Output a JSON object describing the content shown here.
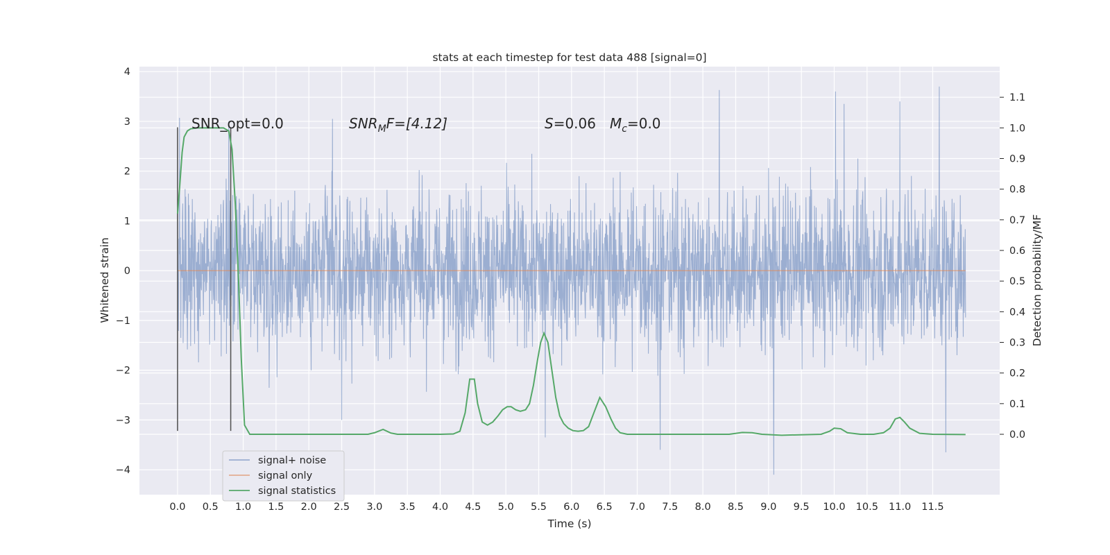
{
  "chart_data": {
    "type": "line",
    "title": "stats at each timestep for test data 488 [signal=0]",
    "xlabel": "Time (s)",
    "ylabel_left": "Whitened strain",
    "ylabel_right": "Detection probability/MF",
    "xlim": [
      -0.58,
      12.52
    ],
    "ylim_left": [
      -4.5,
      4.1
    ],
    "ylim_right": [
      -0.197,
      1.2
    ],
    "x_ticks": [
      "0.0",
      "0.5",
      "1.0",
      "1.5",
      "2.0",
      "2.5",
      "3.0",
      "3.5",
      "4.0",
      "4.5",
      "5.0",
      "5.5",
      "6.0",
      "6.5",
      "7.0",
      "7.5",
      "8.0",
      "8.5",
      "9.0",
      "9.5",
      "10.0",
      "10.5",
      "11.0",
      "11.5"
    ],
    "y_ticks_left": [
      "4",
      "3",
      "2",
      "1",
      "0",
      "−1",
      "−2",
      "−3",
      "−4"
    ],
    "y_ticks_right": [
      "1.1",
      "1.0",
      "0.9",
      "0.8",
      "0.7",
      "0.6",
      "0.5",
      "0.4",
      "0.3",
      "0.2",
      "0.1",
      "0.0"
    ],
    "grid": true,
    "legend_position": "lower-left",
    "annotations": {
      "snr_opt": "SNR_opt=0.0",
      "snr_mf_prefix": "SNR",
      "snr_mf_sub": "M",
      "snr_mf_rest": "F=[4.12]",
      "s_prefix": "S",
      "s_rest": "=0.06",
      "mc_prefix": "M",
      "mc_sub": "c",
      "mc_rest": "=0.0"
    },
    "vertical_markers_x": [
      0.0,
      0.81
    ],
    "series": [
      {
        "name": "signal+ noise",
        "color": "#4c72b0",
        "style": "noise, sampled from 0.0 to 12.0 s, amplitude roughly ±3.6 whitened strain",
        "envelope_peaks": [
          {
            "x": 0.03,
            "y": 3.07
          },
          {
            "x": 0.78,
            "y": 3.0
          },
          {
            "x": 2.36,
            "y": 3.05
          },
          {
            "x": 2.5,
            "y": -3.0
          },
          {
            "x": 8.25,
            "y": 3.63
          },
          {
            "x": 9.08,
            "y": -4.1
          },
          {
            "x": 10.02,
            "y": 3.6
          },
          {
            "x": 10.15,
            "y": 3.35
          },
          {
            "x": 11.0,
            "y": 3.4
          },
          {
            "x": 11.6,
            "y": 3.7
          },
          {
            "x": 11.7,
            "y": -3.65
          },
          {
            "x": 7.35,
            "y": -3.6
          },
          {
            "x": 5.6,
            "y": -3.35
          }
        ]
      },
      {
        "name": "signal only",
        "color": "#dd8452",
        "x": [
          0.0,
          12.0
        ],
        "y": [
          0.0,
          0.0
        ]
      },
      {
        "name": "signal statistics",
        "color": "#55a868",
        "x": [
          0.0,
          0.03,
          0.07,
          0.1,
          0.15,
          0.2,
          0.3,
          0.4,
          0.5,
          0.6,
          0.7,
          0.78,
          0.83,
          0.88,
          0.93,
          0.97,
          1.02,
          1.1,
          1.2,
          2.0,
          2.9,
          3.0,
          3.13,
          3.25,
          3.35,
          3.5,
          4.0,
          4.2,
          4.3,
          4.38,
          4.45,
          4.52,
          4.57,
          4.64,
          4.72,
          4.8,
          4.88,
          4.95,
          5.02,
          5.08,
          5.15,
          5.22,
          5.3,
          5.36,
          5.42,
          5.48,
          5.53,
          5.58,
          5.64,
          5.7,
          5.76,
          5.82,
          5.88,
          5.95,
          6.02,
          6.1,
          6.18,
          6.26,
          6.34,
          6.43,
          6.52,
          6.6,
          6.67,
          6.74,
          6.85,
          7.0,
          8.0,
          8.4,
          8.6,
          8.75,
          8.9,
          9.2,
          9.8,
          9.93,
          10.0,
          10.1,
          10.2,
          10.4,
          10.6,
          10.75,
          10.85,
          10.93,
          11.0,
          11.07,
          11.15,
          11.3,
          11.5,
          12.0
        ],
        "y": [
          0.72,
          0.8,
          0.92,
          0.97,
          0.99,
          0.997,
          1.0,
          1.0,
          1.0,
          1.0,
          1.0,
          0.99,
          0.93,
          0.75,
          0.5,
          0.25,
          0.03,
          0.0,
          0.0,
          0.0,
          0.0,
          0.005,
          0.016,
          0.004,
          0.0,
          0.0,
          0.0,
          0.001,
          0.01,
          0.07,
          0.18,
          0.18,
          0.1,
          0.04,
          0.03,
          0.04,
          0.06,
          0.08,
          0.09,
          0.09,
          0.08,
          0.075,
          0.08,
          0.1,
          0.16,
          0.24,
          0.3,
          0.33,
          0.3,
          0.21,
          0.12,
          0.06,
          0.035,
          0.02,
          0.012,
          0.01,
          0.012,
          0.025,
          0.07,
          0.12,
          0.09,
          0.05,
          0.02,
          0.005,
          0.0,
          0.0,
          0.0,
          0.0,
          0.006,
          0.005,
          0.0,
          -0.003,
          0.0,
          0.01,
          0.02,
          0.018,
          0.005,
          0.0,
          0.0,
          0.005,
          0.02,
          0.05,
          0.055,
          0.04,
          0.02,
          0.003,
          0.0,
          -0.001
        ]
      }
    ]
  }
}
